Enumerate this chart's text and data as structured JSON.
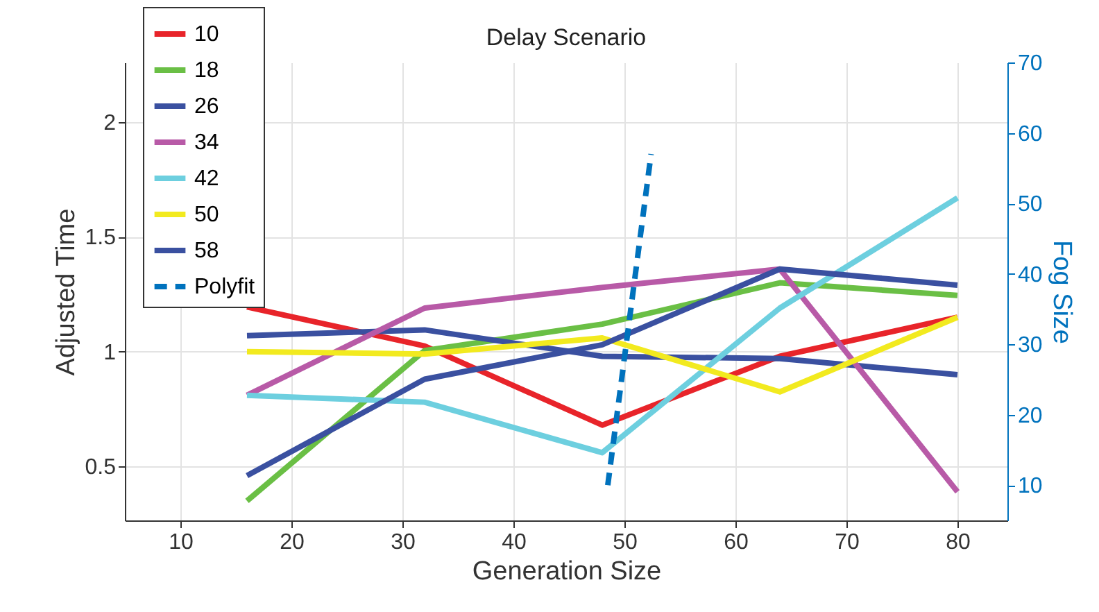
{
  "chart_data": {
    "type": "line",
    "title": "Delay Scenario",
    "xlabel": "Generation Size",
    "ylabel": "Adjusted Time",
    "y2label": "Fog Size",
    "x": [
      16,
      32,
      48,
      64,
      80
    ],
    "series": [
      {
        "name": "10",
        "color": "#e8242a",
        "values": [
          1.195,
          1.025,
          0.68,
          0.98,
          1.15
        ]
      },
      {
        "name": "18",
        "color": "#6abf45",
        "values": [
          0.35,
          1.005,
          1.12,
          1.3,
          1.245
        ]
      },
      {
        "name": "26",
        "color": "#3a50a0",
        "values": [
          1.07,
          1.095,
          0.98,
          0.97,
          0.9
        ]
      },
      {
        "name": "34",
        "color": "#b85aa7",
        "values": [
          0.81,
          1.19,
          1.28,
          1.36,
          0.39
        ]
      },
      {
        "name": "42",
        "color": "#6dcfdf",
        "values": [
          0.81,
          0.78,
          0.56,
          1.19,
          1.67
        ]
      },
      {
        "name": "50",
        "color": "#f2ea1f",
        "values": [
          1.0,
          0.99,
          1.06,
          0.825,
          1.15
        ]
      },
      {
        "name": "58",
        "color": "#3a50a0",
        "values": [
          0.46,
          0.88,
          1.03,
          1.36,
          1.29
        ]
      },
      {
        "name": "Polyfit",
        "color": "#0072bd",
        "axis": "y2",
        "line_style": "dashed",
        "x": [
          48.5,
          52.4
        ],
        "values": [
          10,
          57
        ]
      }
    ],
    "xlim": [
      5,
      84.5
    ],
    "xticks": [
      10,
      20,
      30,
      40,
      50,
      60,
      70,
      80
    ],
    "ylim": [
      0.265,
      2.26
    ],
    "yticks": [
      0.5,
      1,
      1.5,
      2
    ],
    "y2lim": [
      5,
      70
    ],
    "y2ticks": [
      10,
      20,
      30,
      40,
      50,
      60,
      70
    ],
    "grid": true,
    "legend": "top left",
    "line_style": "solid"
  }
}
